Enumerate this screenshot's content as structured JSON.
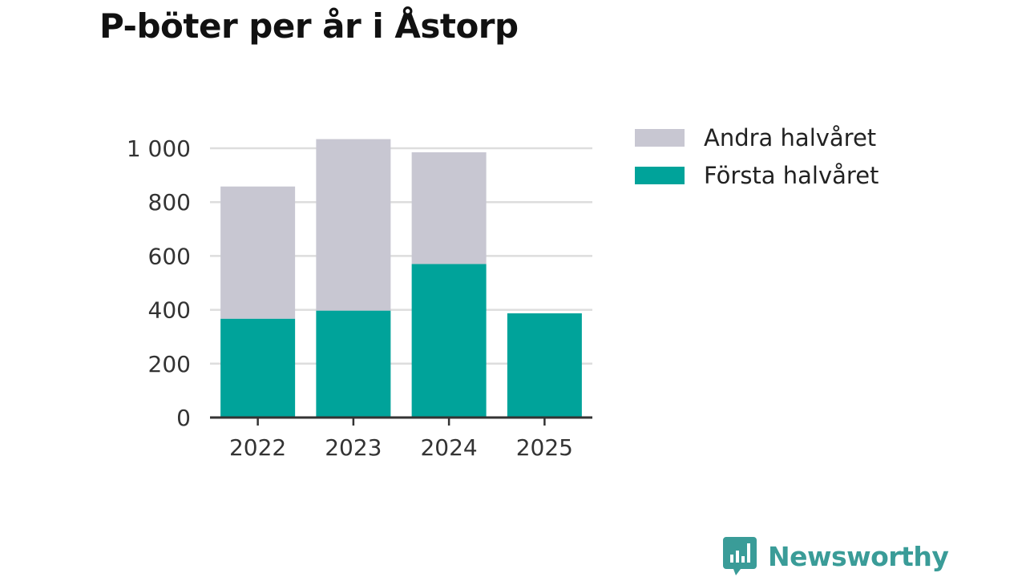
{
  "title": "P-böter per år i Åstorp",
  "colors": {
    "first_half": "#00a39a",
    "second_half": "#c8c7d2",
    "grid": "#dddddd",
    "axis": "#333333",
    "brand": "#3a9c98"
  },
  "legend": {
    "second_half_label": "Andra halvåret",
    "first_half_label": "Första halvåret"
  },
  "brand": {
    "name": "Newsworthy",
    "icon": "newsworthy-logo-icon"
  },
  "chart_data": {
    "type": "bar",
    "stacked": true,
    "title": "P-böter per år i Åstorp",
    "categories": [
      "2022",
      "2023",
      "2024",
      "2025"
    ],
    "series": [
      {
        "name": "Första halvåret",
        "values": [
          367,
          397,
          570,
          387
        ]
      },
      {
        "name": "Andra halvåret",
        "values": [
          491,
          637,
          415,
          0
        ]
      }
    ],
    "ylim": [
      0,
      1000
    ],
    "yticks": [
      0,
      200,
      400,
      600,
      800,
      1000
    ],
    "ytick_labels": [
      "0",
      "200",
      "400",
      "600",
      "800",
      "1 000"
    ],
    "grid": true,
    "legend": "top-right",
    "xlabel": "",
    "ylabel": ""
  }
}
